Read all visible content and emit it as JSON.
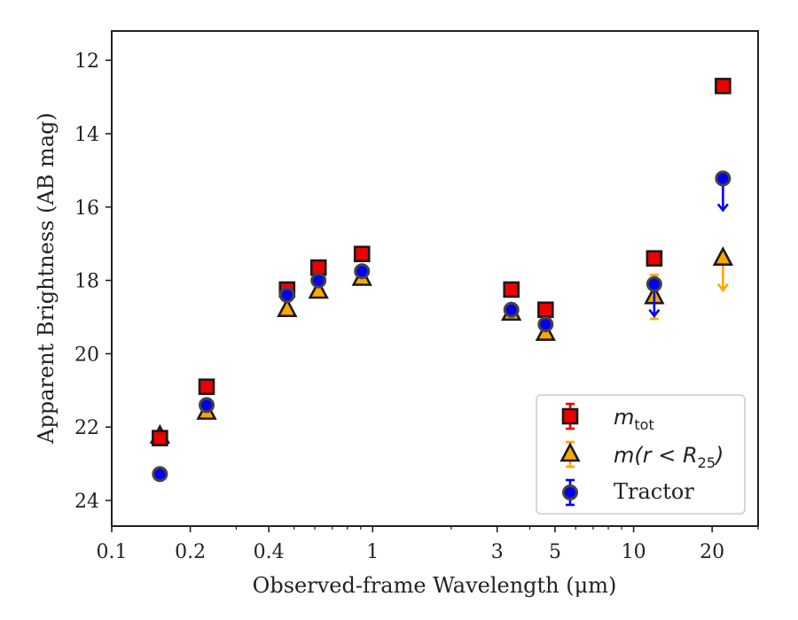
{
  "chart_data": {
    "type": "scatter",
    "xlabel": "Observed-frame Wavelength (μm)",
    "ylabel": "Apparent Brightness (AB mag)",
    "x_scale": "log",
    "xlim": [
      0.1,
      30
    ],
    "ylim": [
      24.7,
      11.2
    ],
    "y_inverted": true,
    "grid": false,
    "legend_position": "lower-right",
    "x_ticks": [
      {
        "value": 0.1,
        "label": "0.1"
      },
      {
        "value": 0.2,
        "label": "0.2"
      },
      {
        "value": 0.4,
        "label": "0.4"
      },
      {
        "value": 1,
        "label": "1"
      },
      {
        "value": 3,
        "label": "3"
      },
      {
        "value": 5,
        "label": "5"
      },
      {
        "value": 10,
        "label": "10"
      },
      {
        "value": 20,
        "label": "20"
      }
    ],
    "y_ticks": [
      {
        "value": 12,
        "label": "12"
      },
      {
        "value": 14,
        "label": "14"
      },
      {
        "value": 16,
        "label": "16"
      },
      {
        "value": 18,
        "label": "18"
      },
      {
        "value": 20,
        "label": "20"
      },
      {
        "value": 22,
        "label": "22"
      },
      {
        "value": 24,
        "label": "24"
      }
    ],
    "series": [
      {
        "name": "m_tot",
        "legend_main": "m",
        "legend_sub": "tot",
        "marker": "square",
        "color": "#ee0000",
        "points": [
          {
            "x": 0.153,
            "y": 22.3
          },
          {
            "x": 0.231,
            "y": 20.9
          },
          {
            "x": 0.47,
            "y": 18.25
          },
          {
            "x": 0.62,
            "y": 17.65
          },
          {
            "x": 0.91,
            "y": 17.28
          },
          {
            "x": 3.4,
            "y": 18.25
          },
          {
            "x": 4.6,
            "y": 18.8
          },
          {
            "x": 12.0,
            "y": 17.4
          },
          {
            "x": 22.0,
            "y": 12.7
          }
        ]
      },
      {
        "name": "m(r < R_25)",
        "legend_main": "m(r < R",
        "legend_sub": "25",
        "legend_tail": ")",
        "marker": "triangle",
        "color": "#ffa500",
        "points": [
          {
            "x": 0.153,
            "y": 22.25
          },
          {
            "x": 0.231,
            "y": 21.6
          },
          {
            "x": 0.47,
            "y": 18.8
          },
          {
            "x": 0.62,
            "y": 18.3
          },
          {
            "x": 0.91,
            "y": 17.95
          },
          {
            "x": 3.4,
            "y": 18.9
          },
          {
            "x": 4.6,
            "y": 19.45
          },
          {
            "x": 12.0,
            "y": 18.45,
            "yerr": 0.6
          },
          {
            "x": 22.0,
            "y": 17.4,
            "upper_limit": true
          }
        ]
      },
      {
        "name": "Tractor",
        "legend_main": "Tractor",
        "marker": "circle",
        "color": "#0000ee",
        "points": [
          {
            "x": 0.153,
            "y": 23.28
          },
          {
            "x": 0.231,
            "y": 21.4
          },
          {
            "x": 0.47,
            "y": 18.4
          },
          {
            "x": 0.62,
            "y": 18.0
          },
          {
            "x": 0.91,
            "y": 17.75
          },
          {
            "x": 3.4,
            "y": 18.8
          },
          {
            "x": 4.6,
            "y": 19.2
          },
          {
            "x": 12.0,
            "y": 18.1,
            "upper_limit": true
          },
          {
            "x": 22.0,
            "y": 15.22,
            "upper_limit": true
          }
        ]
      }
    ]
  }
}
